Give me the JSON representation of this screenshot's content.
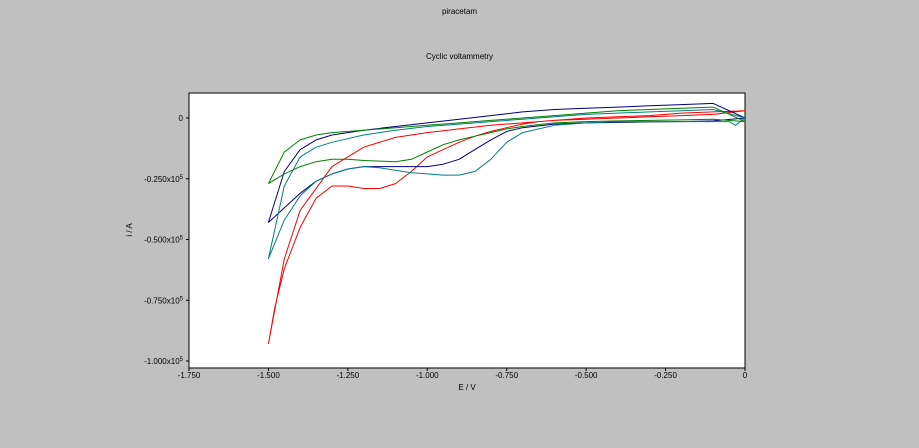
{
  "window": {
    "title": "piracetam"
  },
  "chart_data": {
    "type": "line",
    "title": "piracetam",
    "subtitle": "Cyclic voltammetry",
    "xlabel": "E / V",
    "ylabel": "i / A",
    "xlim": [
      -1.75,
      0
    ],
    "ylim": [
      -1e-05,
      1.2e-06
    ],
    "x_ticks": [
      -1.75,
      -1.5,
      -1.25,
      -1.0,
      -0.75,
      -0.5,
      -0.25,
      0
    ],
    "x_tick_labels": [
      "-1.750",
      "-1.500",
      "-1.250",
      "-1.000",
      "-0.750",
      "-0.500",
      "-0.250",
      "0"
    ],
    "y_ticks": [
      0,
      -2.5e-06,
      -5e-06,
      -7.5e-06,
      -1e-05
    ],
    "y_tick_labels": [
      {
        "base": "0",
        "exp": ""
      },
      {
        "base": "-0.250x10",
        "exp": "5"
      },
      {
        "base": "-0.500x10",
        "exp": "5"
      },
      {
        "base": "-0.750x10",
        "exp": "5"
      },
      {
        "base": "-1.000x10",
        "exp": "5"
      }
    ],
    "grid": false,
    "series": [
      {
        "color": "#ff0000",
        "x": [
          -1.5,
          -1.48,
          -1.45,
          -1.4,
          -1.35,
          -1.3,
          -1.25,
          -1.2,
          -1.15,
          -1.1,
          -1.05,
          -1.0,
          -0.95,
          -0.9,
          -0.85,
          -0.8,
          -0.75,
          -0.7,
          -0.65,
          -0.6,
          -0.5,
          -0.4,
          -0.3,
          -0.2,
          -0.1,
          0,
          -0.1,
          -0.2,
          -0.3,
          -0.4,
          -0.5,
          -0.6,
          -0.7,
          -0.8,
          -0.9,
          -1.0,
          -1.1,
          -1.2,
          -1.3,
          -1.4,
          -1.45,
          -1.5
        ],
        "y": [
          -9.3e-06,
          -7.8e-06,
          -6.2e-06,
          -4.5e-06,
          -3.3e-06,
          -2.8e-06,
          -2.8e-06,
          -2.9e-06,
          -2.9e-06,
          -2.7e-06,
          -2.2e-06,
          -1.6e-06,
          -1.3e-06,
          -1e-06,
          -7.5e-07,
          -5.5e-07,
          -4e-07,
          -2.5e-07,
          -1.5e-07,
          -1e-07,
          -5e-08,
          0.0,
          5e-08,
          1e-07,
          1.5e-07,
          3e-07,
          2.5e-07,
          2e-07,
          1e-07,
          5e-08,
          0.0,
          -1e-07,
          -2e-07,
          -3e-07,
          -4.5e-07,
          -6e-07,
          -8e-07,
          -1.2e-06,
          -2e-06,
          -3.8e-06,
          -5.8e-06,
          -9.3e-06
        ]
      },
      {
        "color": "#000080",
        "x": [
          -1.5,
          -1.45,
          -1.4,
          -1.35,
          -1.3,
          -1.25,
          -1.2,
          -1.15,
          -1.1,
          -1.0,
          -0.95,
          -0.9,
          -0.85,
          -0.8,
          -0.75,
          -0.7,
          -0.6,
          -0.5,
          -0.4,
          -0.3,
          -0.2,
          -0.1,
          0,
          -0.1,
          -0.2,
          -0.3,
          -0.4,
          -0.5,
          -0.6,
          -0.7,
          -0.8,
          -0.9,
          -1.0,
          -1.1,
          -1.2,
          -1.3,
          -1.35,
          -1.4,
          -1.45,
          -1.5
        ],
        "y": [
          -4.3e-06,
          -3.7e-06,
          -3.1e-06,
          -2.6e-06,
          -2.3e-06,
          -2.1e-06,
          -2e-06,
          -2e-06,
          -2e-06,
          -2e-06,
          -1.9e-06,
          -1.7e-06,
          -1.3e-06,
          -9e-07,
          -5.5e-07,
          -4e-07,
          -2.5e-07,
          -2e-07,
          -1.8e-07,
          -1.6e-07,
          -1.5e-07,
          -1.2e-07,
          0.0,
          6e-07,
          5.5e-07,
          5e-07,
          4.5e-07,
          4e-07,
          3.5e-07,
          2.5e-07,
          1e-07,
          -5e-08,
          -2e-07,
          -3.5e-07,
          -5e-07,
          -7e-07,
          -9e-07,
          -1.3e-06,
          -2.2e-06,
          -4.3e-06
        ]
      },
      {
        "color": "#008080",
        "x": [
          -1.5,
          -1.45,
          -1.4,
          -1.35,
          -1.3,
          -1.25,
          -1.2,
          -1.15,
          -1.1,
          -1.05,
          -1.0,
          -0.95,
          -0.9,
          -0.85,
          -0.8,
          -0.75,
          -0.7,
          -0.6,
          -0.5,
          -0.4,
          -0.3,
          -0.2,
          -0.1,
          -0.05,
          -0.03,
          0,
          -0.1,
          -0.2,
          -0.3,
          -0.4,
          -0.5,
          -0.6,
          -0.7,
          -0.8,
          -0.9,
          -1.0,
          -1.1,
          -1.2,
          -1.3,
          -1.35,
          -1.4,
          -1.45,
          -1.5
        ],
        "y": [
          -5.8e-06,
          -4.2e-06,
          -3.2e-06,
          -2.6e-06,
          -2.3e-06,
          -2.1e-06,
          -2e-06,
          -2.05e-06,
          -2.15e-06,
          -2.25e-06,
          -2.3e-06,
          -2.35e-06,
          -2.35e-06,
          -2.2e-06,
          -1.7e-06,
          -1e-06,
          -6e-07,
          -3e-07,
          -2e-07,
          -1.5e-07,
          -1.5e-07,
          -1.5e-07,
          -1.5e-07,
          -1.5e-07,
          -3e-07,
          0.0,
          3.5e-07,
          3e-07,
          2.5e-07,
          2e-07,
          1.5e-07,
          5e-08,
          -5e-08,
          -1.5e-07,
          -2.5e-07,
          -3.5e-07,
          -5e-07,
          -7e-07,
          -1e-06,
          -1.2e-06,
          -1.6e-06,
          -2.8e-06,
          -5.8e-06
        ]
      },
      {
        "color": "#008000",
        "x": [
          -1.5,
          -1.45,
          -1.4,
          -1.35,
          -1.3,
          -1.25,
          -1.2,
          -1.1,
          -1.05,
          -1.0,
          -0.95,
          -0.9,
          -0.85,
          -0.8,
          -0.75,
          -0.7,
          -0.6,
          -0.5,
          -0.4,
          -0.3,
          -0.2,
          -0.1,
          0,
          -0.1,
          -0.2,
          -0.3,
          -0.4,
          -0.5,
          -0.6,
          -0.7,
          -0.8,
          -0.9,
          -1.0,
          -1.1,
          -1.2,
          -1.3,
          -1.35,
          -1.4,
          -1.45,
          -1.5
        ],
        "y": [
          -2.7e-06,
          -2.3e-06,
          -2e-06,
          -1.8e-06,
          -1.7e-06,
          -1.7e-06,
          -1.75e-06,
          -1.8e-06,
          -1.7e-06,
          -1.4e-06,
          -1.1e-06,
          -9e-07,
          -7.5e-07,
          -6e-07,
          -4.5e-07,
          -3.5e-07,
          -2e-07,
          -1.5e-07,
          -1.2e-07,
          -1e-07,
          -8e-08,
          -5e-08,
          -1.5e-07,
          4.5e-07,
          4e-07,
          3.5e-07,
          3e-07,
          2e-07,
          1e-07,
          0.0,
          -1e-07,
          -2e-07,
          -3e-07,
          -4e-07,
          -5e-07,
          -6e-07,
          -7e-07,
          -9e-07,
          -1.4e-06,
          -2.7e-06
        ]
      }
    ]
  }
}
